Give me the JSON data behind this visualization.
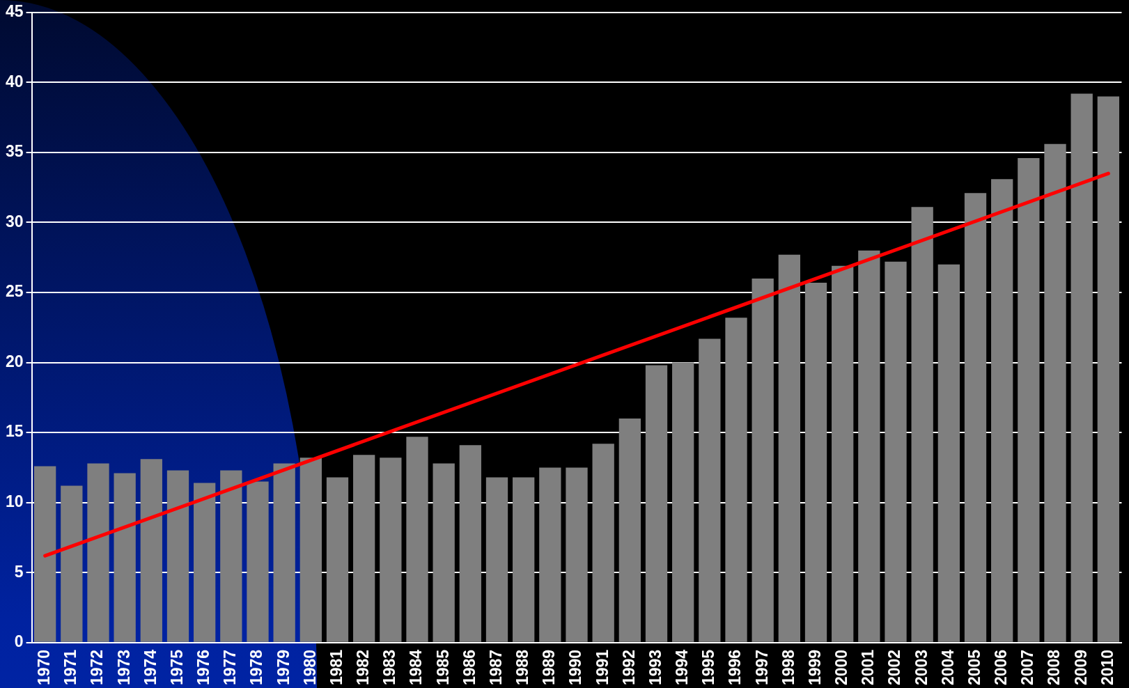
{
  "chart_data": {
    "type": "bar",
    "categories": [
      "1970",
      "1971",
      "1972",
      "1973",
      "1974",
      "1975",
      "1976",
      "1977",
      "1978",
      "1979",
      "1980",
      "1981",
      "1982",
      "1983",
      "1984",
      "1985",
      "1986",
      "1987",
      "1988",
      "1989",
      "1990",
      "1991",
      "1992",
      "1993",
      "1994",
      "1995",
      "1996",
      "1997",
      "1998",
      "1999",
      "2000",
      "2001",
      "2002",
      "2003",
      "2004",
      "2005",
      "2006",
      "2007",
      "2008",
      "2009",
      "2010"
    ],
    "series": [
      {
        "color": "#7f7f7f",
        "values": [
          12.6,
          11.2,
          12.8,
          12.1,
          13.1,
          12.3,
          11.4,
          12.3,
          11.5,
          12.8,
          13.2,
          11.8,
          13.4,
          13.2,
          14.7,
          12.8,
          14.1,
          11.8,
          11.8,
          12.5,
          12.5,
          14.2,
          16.0,
          19.8,
          20.0,
          21.7,
          23.2,
          26.0,
          27.7,
          25.7,
          26.9,
          28.0,
          27.2,
          31.1,
          27.0,
          32.1,
          33.1,
          34.6,
          35.6,
          39.2,
          39.0
        ]
      },
      {
        "type": "line",
        "color": "#ff0000",
        "values": [
          6.2,
          null,
          null,
          null,
          null,
          null,
          null,
          null,
          null,
          null,
          null,
          null,
          null,
          null,
          null,
          null,
          null,
          null,
          null,
          null,
          null,
          null,
          null,
          null,
          null,
          null,
          null,
          null,
          null,
          null,
          null,
          null,
          null,
          null,
          null,
          null,
          null,
          null,
          null,
          null,
          33.5
        ]
      }
    ],
    "ylim": [
      0,
      45
    ],
    "yticks": [
      0,
      5,
      10,
      15,
      20,
      25,
      30,
      35,
      40,
      45
    ],
    "grid": "y"
  }
}
